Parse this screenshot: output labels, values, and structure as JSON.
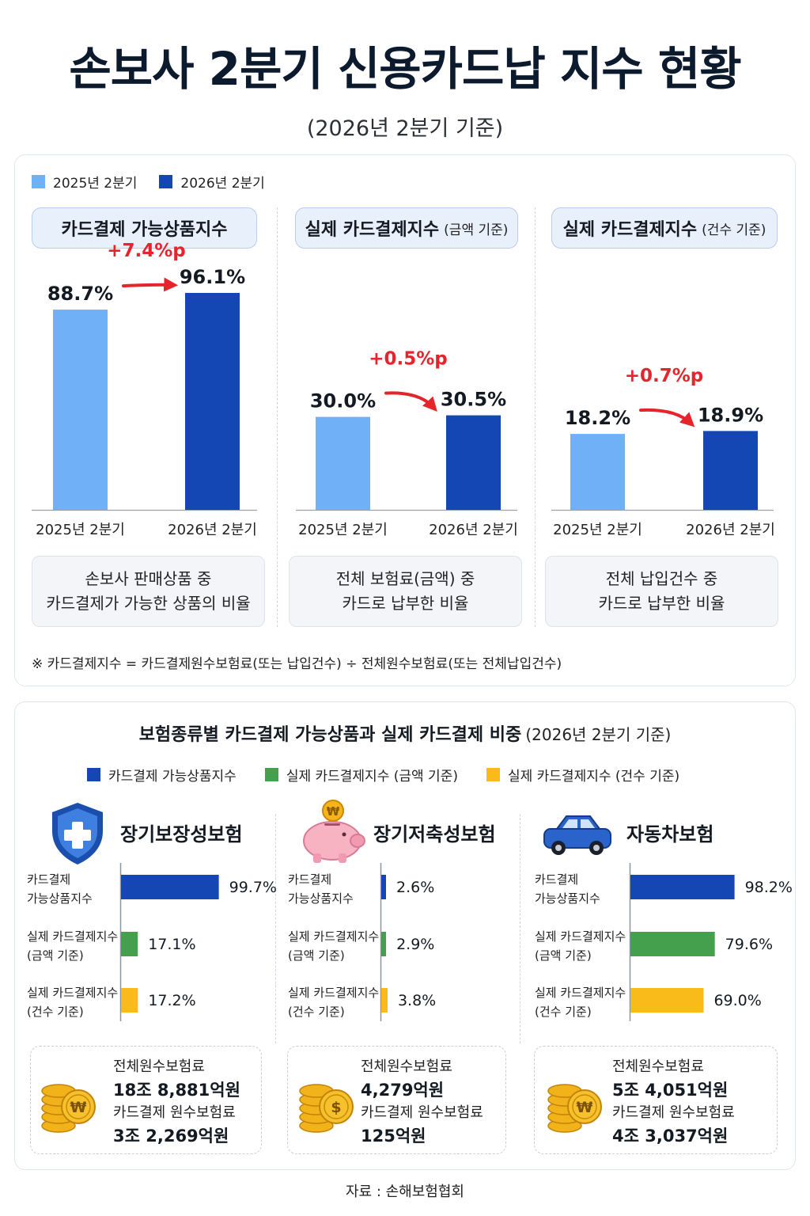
{
  "title": "손보사 2분기 신용카드납 지수 현황",
  "subtitle": "(2026년 2분기 기준)",
  "colors": {
    "light_blue": "#6fb0f7",
    "dark_blue": "#1446b4",
    "green": "#44a04c",
    "yellow": "#f9bb1a",
    "red": "#e6242b"
  },
  "top_legend": [
    "2025년 2분기",
    "2026년 2분기"
  ],
  "footnote": "※ 카드결제지수 = 카드결제원수보험료(또는 납입건수) ÷ 전체원수보험료(또는 전체납입건수)",
  "chart_data": [
    {
      "type": "bar",
      "title": "카드결제 가능상품지수",
      "title_note": "",
      "categories": [
        "2025년 2분기",
        "2026년 2분기"
      ],
      "values": [
        88.7,
        96.1
      ],
      "value_labels": [
        "88.7%",
        "96.1%"
      ],
      "change_label": "+7.4%p",
      "description": [
        "손보사 판매상품 중",
        "카드결제가 가능한 상품의 비율"
      ]
    },
    {
      "type": "bar",
      "title": "실제 카드결제지수",
      "title_note": "(금액 기준)",
      "categories": [
        "2025년 2분기",
        "2026년 2분기"
      ],
      "values": [
        30.0,
        30.5
      ],
      "value_labels": [
        "30.0%",
        "30.5%"
      ],
      "change_label": "+0.5%p",
      "description": [
        "전체 보험료(금액) 중",
        "카드로 납부한 비율"
      ]
    },
    {
      "type": "bar",
      "title": "실제 카드결제지수",
      "title_note": "(건수 기준)",
      "categories": [
        "2025년 2분기",
        "2026년 2분기"
      ],
      "values": [
        18.2,
        18.9
      ],
      "value_labels": [
        "18.2%",
        "18.9%"
      ],
      "change_label": "+0.7%p",
      "description": [
        "전체 납입건수 중",
        "카드로 납부한 비율"
      ]
    },
    {
      "type": "bar",
      "orientation": "horizontal",
      "title": "장기보장성보험",
      "categories": [
        [
          "카드결제",
          "가능상품지수"
        ],
        [
          "실제 카드결제지수",
          "(금액 기준)"
        ],
        [
          "실제 카드결제지수",
          "(건수 기준)"
        ]
      ],
      "values": [
        99.7,
        17.1,
        17.2
      ],
      "value_labels": [
        "99.7%",
        "17.1%",
        "17.2%"
      ]
    },
    {
      "type": "bar",
      "orientation": "horizontal",
      "title": "장기저축성보험",
      "categories": [
        [
          "카드결제",
          "가능상품지수"
        ],
        [
          "실제 카드결제지수",
          "(금액 기준)"
        ],
        [
          "실제 카드결제지수",
          "(건수 기준)"
        ]
      ],
      "values": [
        2.6,
        2.9,
        3.8
      ],
      "value_labels": [
        "2.6%",
        "2.9%",
        "3.8%"
      ]
    },
    {
      "type": "bar",
      "orientation": "horizontal",
      "title": "자동차보험",
      "categories": [
        [
          "카드결제",
          "가능상품지수"
        ],
        [
          "실제 카드결제지수",
          "(금액 기준)"
        ],
        [
          "실제 카드결제지수",
          "(건수 기준)"
        ]
      ],
      "values": [
        98.2,
        79.6,
        69.0
      ],
      "value_labels": [
        "98.2%",
        "79.6%",
        "69.0%"
      ]
    }
  ],
  "section2": {
    "title": "보험종류별 카드결제 가능상품과 실제 카드결제 비중",
    "title_note": "(2026년 2분기 기준)",
    "legend": [
      "카드결제 가능상품지수",
      "실제 카드결제지수 (금액 기준)",
      "실제 카드결제지수 (건수 기준)"
    ],
    "insurances": [
      {
        "name": "장기보장성보험",
        "icon": "shield-cross-icon",
        "total_label": "전체원수보험료",
        "total_value": "18조 8,881억원",
        "card_label": "카드결제 원수보험료",
        "card_value": "3조 2,269억원",
        "coin_symbol": "₩"
      },
      {
        "name": "장기저축성보험",
        "icon": "piggy-bank-icon",
        "total_label": "전체원수보험료",
        "total_value": "4,279억원",
        "card_label": "카드결제 원수보험료",
        "card_value": "125억원",
        "coin_symbol": "$"
      },
      {
        "name": "자동차보험",
        "icon": "car-icon",
        "total_label": "전체원수보험료",
        "total_value": "5조 4,051억원",
        "card_label": "카드결제 원수보험료",
        "card_value": "4조 3,037억원",
        "coin_symbol": "₩"
      }
    ]
  },
  "source": "자료 : 손해보험협회"
}
